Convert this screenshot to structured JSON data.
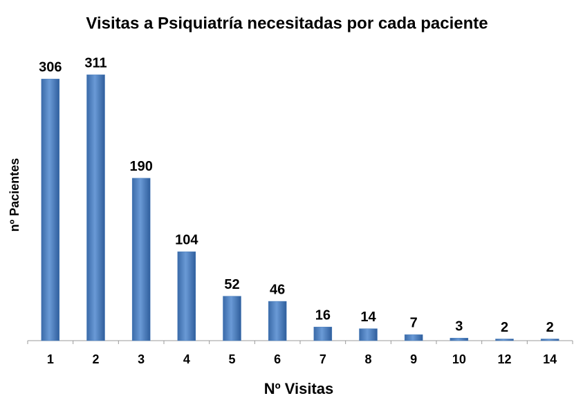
{
  "chart_data": {
    "type": "bar",
    "title": "Visitas a Psiquiatría necesitadas por cada paciente",
    "x_label": "Nº Visitas",
    "y_label": "nº Pacientes",
    "categories": [
      "1",
      "2",
      "3",
      "4",
      "5",
      "6",
      "7",
      "8",
      "9",
      "10",
      "12",
      "14"
    ],
    "values": [
      306,
      311,
      190,
      104,
      52,
      46,
      16,
      14,
      7,
      3,
      2,
      2
    ],
    "color": "#4a7ebb",
    "ylim": [
      0,
      320
    ]
  }
}
